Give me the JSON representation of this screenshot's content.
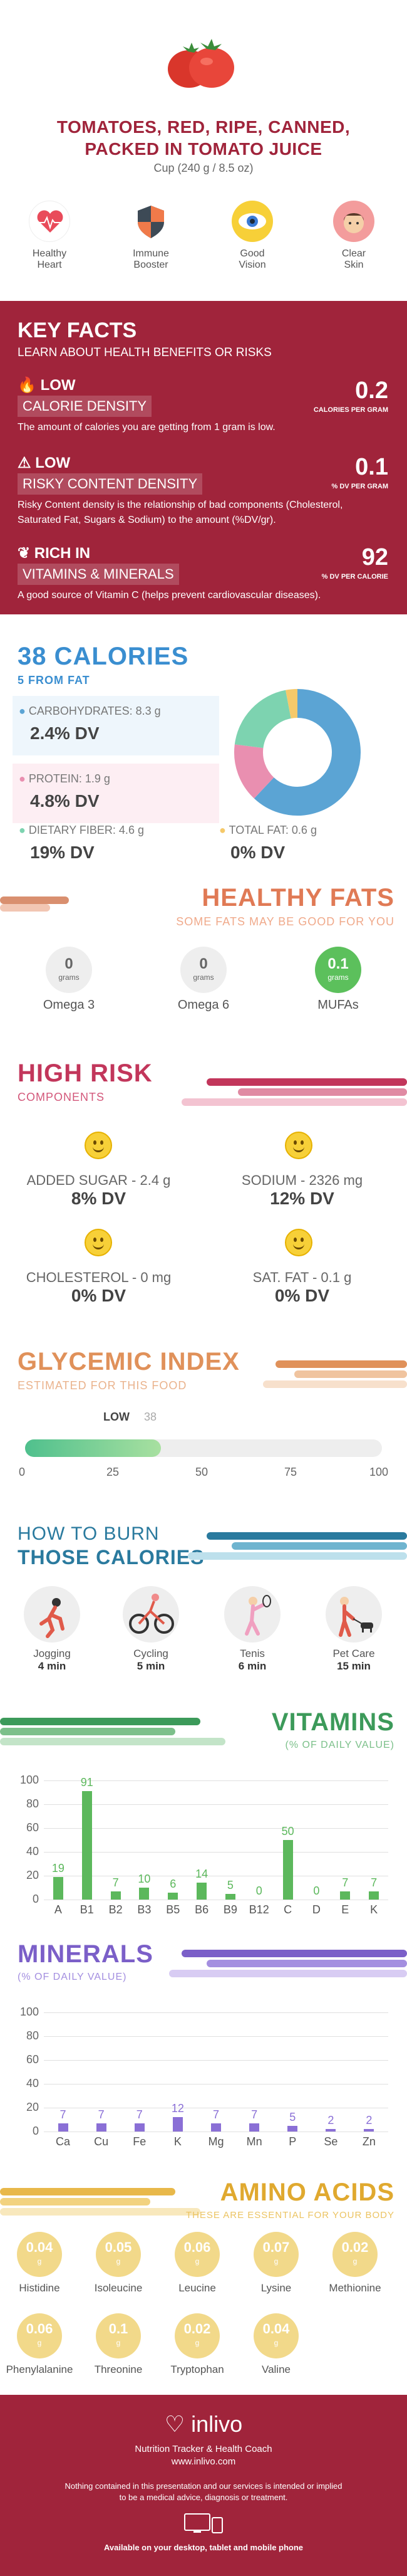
{
  "header": {
    "title_line1": "TOMATOES, RED, RIPE, CANNED,",
    "title_line2": "PACKED IN TOMATO JUICE",
    "serving": "Cup (240 g / 8.5 oz)"
  },
  "benefits": [
    {
      "label_1": "Healthy",
      "label_2": "Heart",
      "icon": "heart-icon"
    },
    {
      "label_1": "Immune",
      "label_2": "Booster",
      "icon": "shield-icon"
    },
    {
      "label_1": "Good",
      "label_2": "Vision",
      "icon": "eye-icon"
    },
    {
      "label_1": "Clear",
      "label_2": "Skin",
      "icon": "face-icon"
    }
  ],
  "key_facts": {
    "title": "KEY FACTS",
    "subtitle": "LEARN ABOUT HEALTH BENEFITS OR RISKS",
    "items": [
      {
        "tag": "LOW",
        "label": "CALORIE DENSITY",
        "value": "0.2",
        "unit": "CALORIES PER GRAM",
        "desc": "The amount of calories you are getting from 1 gram is low."
      },
      {
        "tag": "LOW",
        "label": "RISKY CONTENT DENSITY",
        "value": "0.1",
        "unit": "% DV PER GRAM",
        "desc": "Risky Content density is the relationship of bad components (Cholesterol, Saturated Fat, Sugars & Sodium) to the amount (%DV/gr)."
      },
      {
        "tag": "RICH IN",
        "label": "VITAMINS & MINERALS",
        "value": "92",
        "unit": "% DV PER CALORIE",
        "desc": "A good source of Vitamin C (helps prevent cardiovascular diseases)."
      }
    ]
  },
  "calories": {
    "title": "38 CALORIES",
    "subtitle": "5 FROM FAT",
    "macros": [
      {
        "label": "CARBOHYDRATES: 8.3 g",
        "dv": "2.4% DV",
        "color": "#5ba4d4"
      },
      {
        "label": "PROTEIN: 1.9 g",
        "dv": "4.8% DV",
        "color": "#e98fb0"
      },
      {
        "label": "DIETARY FIBER: 4.6 g",
        "dv": "19% DV",
        "color": "#7dd3b0"
      },
      {
        "label": "TOTAL FAT: 0.6 g",
        "dv": "0% DV",
        "color": "#f5c96a"
      }
    ],
    "pie": [
      {
        "name": "carbs",
        "value": 62,
        "color": "#5ba4d4"
      },
      {
        "name": "protein",
        "value": 15,
        "color": "#e98fb0"
      },
      {
        "name": "fiber",
        "value": 20,
        "color": "#7dd3b0"
      },
      {
        "name": "fat",
        "value": 3,
        "color": "#f5c96a"
      }
    ]
  },
  "healthy_fats": {
    "title": "HEALTHY FATS",
    "subtitle": "SOME FATS MAY BE GOOD FOR YOU",
    "items": [
      {
        "value": "0",
        "unit": "grams",
        "name": "Omega 3",
        "color": "#eeeeee",
        "text_color": "#666666"
      },
      {
        "value": "0",
        "unit": "grams",
        "name": "Omega 6",
        "color": "#eeeeee",
        "text_color": "#666666"
      },
      {
        "value": "0.1",
        "unit": "grams",
        "name": "MUFAs",
        "color": "#5cc05c",
        "text_color": "#ffffff"
      }
    ]
  },
  "high_risk": {
    "title": "HIGH RISK",
    "subtitle": "COMPONENTS",
    "items": [
      {
        "label": "ADDED SUGAR - 2.4 g",
        "dv": "8% DV"
      },
      {
        "label": "SODIUM - 2326 mg",
        "dv": "12% DV"
      },
      {
        "label": "CHOLESTEROL - 0 mg",
        "dv": "0% DV"
      },
      {
        "label": "SAT. FAT - 0.1 g",
        "dv": "0% DV"
      }
    ]
  },
  "glycemic": {
    "title": "GLYCEMIC INDEX",
    "subtitle": "ESTIMATED FOR THIS FOOD",
    "level": "LOW",
    "value": 38,
    "value_text": "38",
    "ticks": [
      "0",
      "25",
      "50",
      "75",
      "100"
    ]
  },
  "burn": {
    "title_line1": "HOW TO BURN",
    "title_line2": "THOSE CALORIES",
    "items": [
      {
        "name": "Jogging",
        "time": "4 min",
        "icon": "jogging-icon"
      },
      {
        "name": "Cycling",
        "time": "5 min",
        "icon": "cycling-icon"
      },
      {
        "name": "Tenis",
        "time": "6 min",
        "icon": "tennis-icon"
      },
      {
        "name": "Pet Care",
        "time": "15 min",
        "icon": "pet-care-icon"
      }
    ]
  },
  "vitamins": {
    "title": "VITAMINS",
    "subtitle": "(% OF DAILY VALUE)",
    "color": "#5cb85c",
    "label_color": "#5cb85c"
  },
  "minerals": {
    "title": "MINERALS",
    "subtitle": "(% OF DAILY VALUE)",
    "color": "#8a6fd6"
  },
  "chart_data": [
    {
      "type": "bar",
      "title": "VITAMINS",
      "categories": [
        "A",
        "B1",
        "B2",
        "B3",
        "B5",
        "B6",
        "B9",
        "B12",
        "C",
        "D",
        "E",
        "K"
      ],
      "values": [
        19,
        91,
        7,
        10,
        6,
        14,
        5,
        0,
        50,
        0,
        7,
        7
      ],
      "value_labels": [
        "19",
        "91",
        "7",
        "10",
        "6",
        "14",
        "5",
        "0",
        "50",
        "0",
        "7",
        "7"
      ],
      "ylim": [
        0,
        100
      ],
      "yticks": [
        "0",
        "20",
        "40",
        "60",
        "80",
        "100"
      ]
    },
    {
      "type": "bar",
      "title": "MINERALS",
      "categories": [
        "Ca",
        "Cu",
        "Fe",
        "K",
        "Mg",
        "Mn",
        "P",
        "Se",
        "Zn"
      ],
      "values": [
        7,
        7,
        7,
        12,
        7,
        7,
        5,
        2,
        2
      ],
      "value_labels": [
        "7",
        "7",
        "7",
        "12",
        "7",
        "7",
        "5",
        "2",
        "2"
      ],
      "ylim": [
        0,
        100
      ],
      "yticks": [
        "0",
        "20",
        "40",
        "60",
        "80",
        "100"
      ]
    }
  ],
  "amino": {
    "title": "AMINO ACIDS",
    "subtitle": "THESE ARE ESSENTIAL FOR YOUR BODY",
    "unit": "g",
    "items": [
      {
        "value": "0.04",
        "name": "Histidine"
      },
      {
        "value": "0.05",
        "name": "Isoleucine"
      },
      {
        "value": "0.06",
        "name": "Leucine"
      },
      {
        "value": "0.07",
        "name": "Lysine"
      },
      {
        "value": "0.02",
        "name": "Methionine"
      },
      {
        "value": "0.06",
        "name": "Phenylalanine"
      },
      {
        "value": "0.1",
        "name": "Threonine"
      },
      {
        "value": "0.02",
        "name": "Tryptophan"
      },
      {
        "value": "0.04",
        "name": "Valine"
      }
    ]
  },
  "footer": {
    "brand": "inlivo",
    "tagline": "Nutrition Tracker & Health Coach",
    "url": "www.inlivo.com",
    "disclaimer_1": "Nothing contained in this presentation and our services is intended or implied",
    "disclaimer_2": "to be a medical advice, diagnosis or treatment.",
    "available": "Available on your desktop, tablet and mobile phone"
  }
}
